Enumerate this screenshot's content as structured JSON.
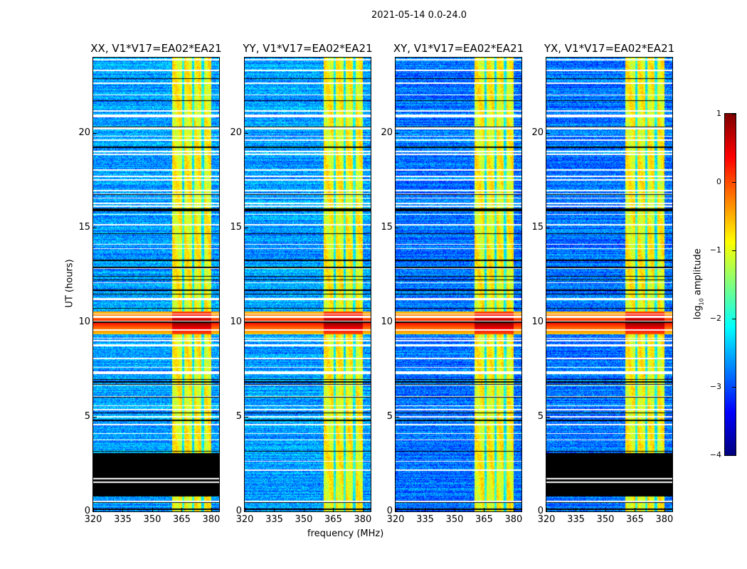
{
  "chart_data": {
    "type": "heatmap",
    "title": "2021-05-14 0.0-24.0",
    "xlabel": "frequency (MHz)",
    "ylabel": "UT (hours)",
    "xlim": [
      320,
      384
    ],
    "ylim": [
      0,
      24
    ],
    "xticks": [
      320,
      335,
      350,
      365,
      380
    ],
    "yticks": [
      0,
      5,
      10,
      15,
      20
    ],
    "panels": [
      {
        "title": "XX, V1*V17=EA02*EA21",
        "flagged_ut": [
          [
            0.8,
            3.1
          ]
        ],
        "base_level": -2.6
      },
      {
        "title": "YY, V1*V17=EA02*EA21",
        "flagged_ut": [],
        "base_level": -2.6
      },
      {
        "title": "XY, V1*V17=EA02*EA21",
        "flagged_ut": [],
        "base_level": -2.8
      },
      {
        "title": "YX, V1*V17=EA02*EA21",
        "flagged_ut": [
          [
            0.8,
            3.1
          ]
        ],
        "base_level": -2.8
      }
    ],
    "features": {
      "bright_band_mhz": [
        360,
        380
      ],
      "subband_edges_mhz": [
        365.5,
        370.5,
        375.5
      ],
      "bright_band_level": -0.9,
      "rfi_ut": [
        9.4,
        10.6
      ],
      "rfi_level": 0.2
    },
    "colorbar": {
      "label": "log10 amplitude",
      "label_base": "log",
      "label_sub": "10",
      "label_rest": " amplitude",
      "range": [
        -4,
        1
      ],
      "ticks": [
        "1",
        "0",
        "−1",
        "−2",
        "−3",
        "−4"
      ],
      "colormap": "jet"
    }
  }
}
